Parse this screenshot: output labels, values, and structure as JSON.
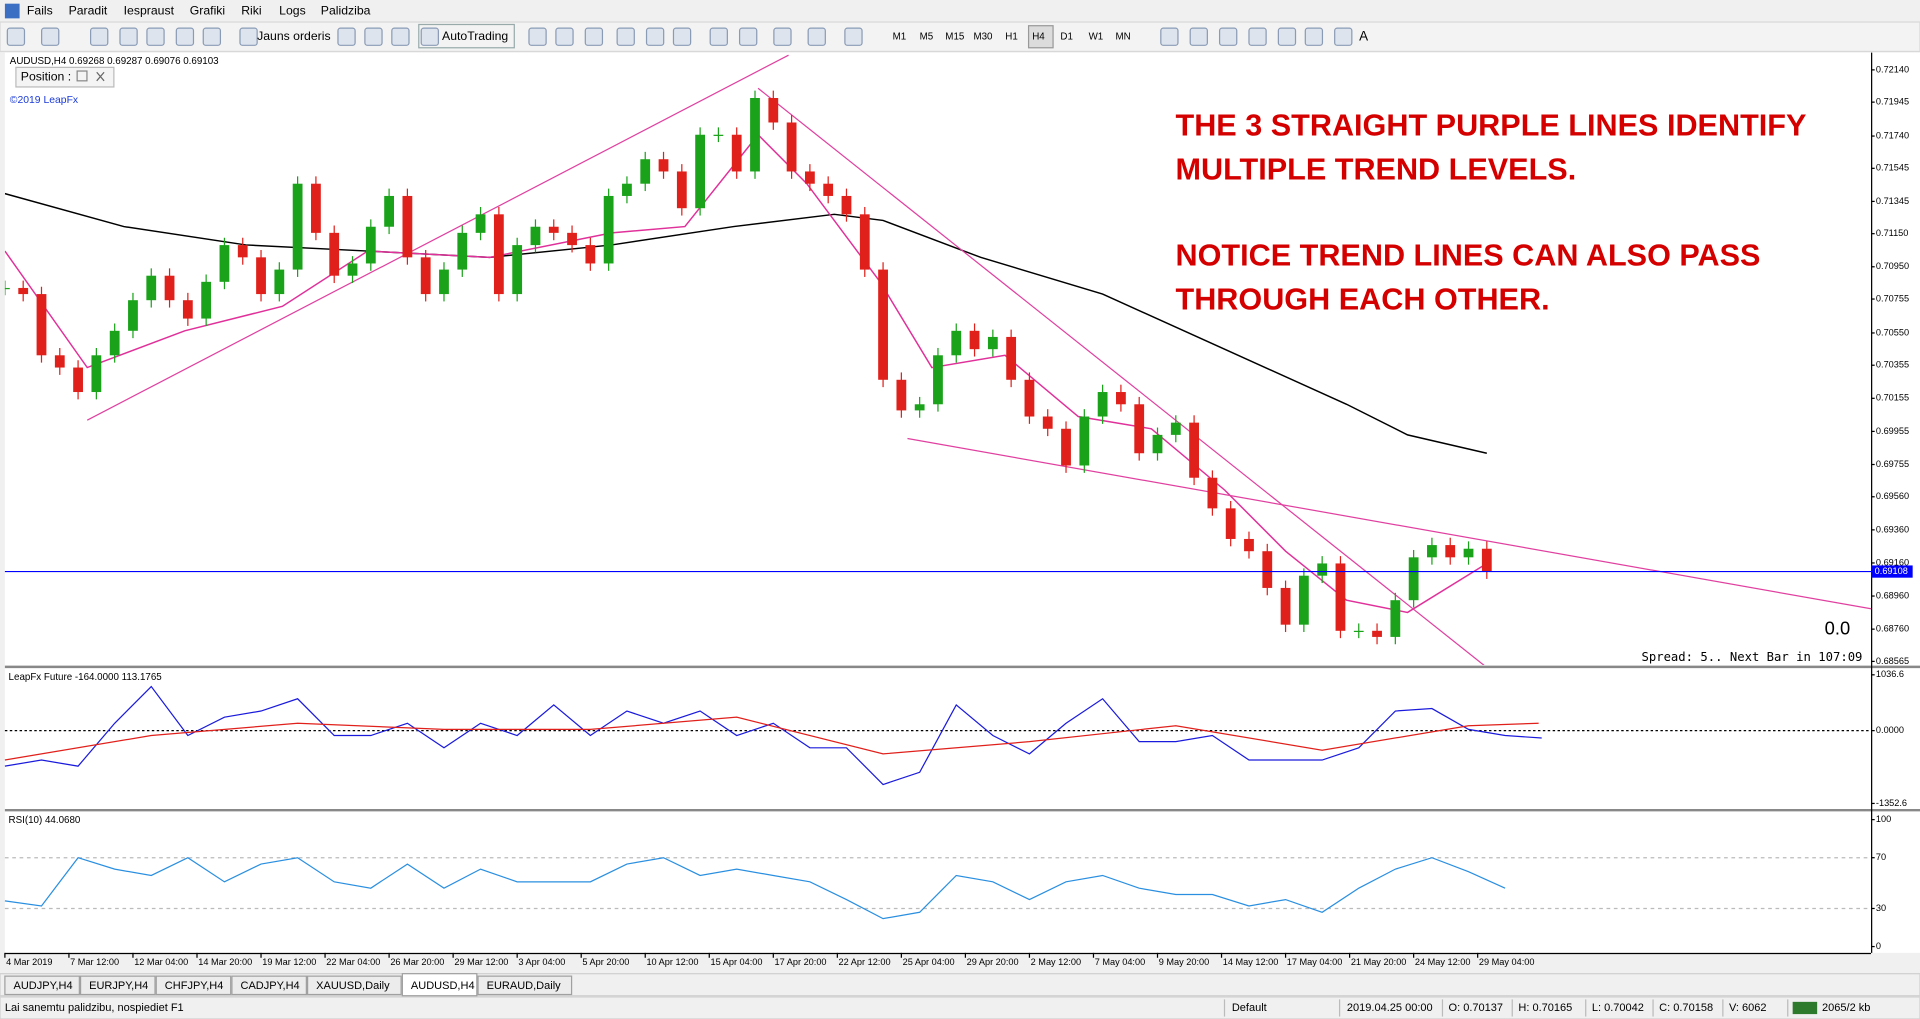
{
  "menu": [
    "Fails",
    "Paradit",
    "Iespraust",
    "Grafiki",
    "Riki",
    "Logs",
    "Palidziba"
  ],
  "toolbar": {
    "new_order": "Jauns orderis",
    "autotrading": "AutoTrading",
    "timeframes": [
      "M1",
      "M5",
      "M15",
      "M30",
      "H1",
      "H4",
      "D1",
      "W1",
      "MN"
    ],
    "active_timeframe": 5,
    "text_tool": "A"
  },
  "chart_data": [
    {
      "type": "candlestick",
      "title": "AUDUSD,H4  0.69268 0.69287 0.69076 0.69103",
      "subtitle": "©2019 LeapFx",
      "panel_label": "Position :",
      "annotations": [
        "THE 3 STRAIGHT PURPLE LINES IDENTIFY",
        "MULTIPLE TREND LEVELS.",
        "NOTICE TREND LINES CAN ALSO PASS",
        "THROUGH EACH OTHER."
      ],
      "annotation_color": "#d40000",
      "balance": "0.0",
      "info": "Spread: 5.. Next Bar in 107:09",
      "x": [
        0,
        6,
        12,
        18,
        24,
        30,
        36,
        42,
        48,
        54,
        60,
        66,
        72,
        78,
        84,
        90,
        96,
        102,
        108,
        114,
        120,
        126,
        132,
        138,
        144,
        150,
        156,
        162,
        168,
        174,
        180,
        186,
        192,
        198,
        204,
        210,
        216,
        222,
        228,
        234,
        240,
        246,
        252,
        258,
        264,
        270,
        276,
        282,
        288,
        294,
        300,
        306,
        312,
        318,
        324,
        330,
        336,
        342,
        348,
        354,
        360,
        366,
        372,
        378,
        384,
        390,
        396,
        402,
        408,
        414,
        420,
        426,
        432,
        438,
        444,
        450,
        456,
        462,
        468,
        474,
        480,
        486
      ],
      "values": [
        0.70822,
        0.70785,
        0.70415,
        0.70341,
        0.70193,
        0.70415,
        0.70563,
        0.70748,
        0.70896,
        0.70748,
        0.70637,
        0.70859,
        0.71081,
        0.71007,
        0.70785,
        0.70933,
        0.71452,
        0.71155,
        0.70896,
        0.7097,
        0.71192,
        0.71378,
        0.71007,
        0.70785,
        0.70933,
        0.71155,
        0.71267,
        0.70785,
        0.71081,
        0.71192,
        0.71155,
        0.71081,
        0.7097,
        0.71378,
        0.71452,
        0.716,
        0.71526,
        0.71304,
        0.71748,
        0.71748,
        0.71526,
        0.7197,
        0.71822,
        0.71526,
        0.71452,
        0.71378,
        0.71267,
        0.70933,
        0.70267,
        0.70082,
        0.70119,
        0.70415,
        0.70563,
        0.70452,
        0.70526,
        0.70267,
        0.70045,
        0.69971,
        0.69749,
        0.70045,
        0.70193,
        0.70119,
        0.69823,
        0.69934,
        0.70008,
        0.69675,
        0.6949,
        0.69305,
        0.69231,
        0.69009,
        0.68787,
        0.69083,
        0.69157,
        0.6875,
        0.6875,
        0.68713,
        0.68935,
        0.69194,
        0.69268,
        0.69194,
        0.69246,
        0.69108
      ],
      "up_color": "#1aa31a",
      "down_color": "#e0201b",
      "xlim": [
        0,
        612
      ],
      "ylim": [
        0.68543,
        0.72244
      ],
      "xticks": [
        {
          "value": 0,
          "label": "4 Mar 2019"
        },
        {
          "value": 21,
          "label": "7 Mar 12:00"
        },
        {
          "value": 42,
          "label": "12 Mar 04:00"
        },
        {
          "value": 63,
          "label": "14 Mar 20:00"
        },
        {
          "value": 84,
          "label": "19 Mar 12:00"
        },
        {
          "value": 105,
          "label": "22 Mar 04:00"
        },
        {
          "value": 126,
          "label": "26 Mar 20:00"
        },
        {
          "value": 147,
          "label": "29 Mar 12:00"
        },
        {
          "value": 168,
          "label": "3 Apr 04:00"
        },
        {
          "value": 189,
          "label": "5 Apr 20:00"
        },
        {
          "value": 210,
          "label": "10 Apr 12:00"
        },
        {
          "value": 231,
          "label": "15 Apr 04:00"
        },
        {
          "value": 252,
          "label": "17 Apr 20:00"
        },
        {
          "value": 273,
          "label": "22 Apr 12:00"
        },
        {
          "value": 294,
          "label": "25 Apr 04:00"
        },
        {
          "value": 315,
          "label": "29 Apr 20:00"
        },
        {
          "value": 336,
          "label": "2 May 12:00"
        },
        {
          "value": 357,
          "label": "7 May 04:00"
        },
        {
          "value": 378,
          "label": "9 May 20:00"
        },
        {
          "value": 399,
          "label": "14 May 12:00"
        },
        {
          "value": 420,
          "label": "17 May 04:00"
        },
        {
          "value": 441,
          "label": "21 May 20:00"
        },
        {
          "value": 462,
          "label": "24 May 12:00"
        },
        {
          "value": 483,
          "label": "29 May 04:00"
        }
      ],
      "yticks": [
        {
          "value": 0.7214,
          "label": "0.72140"
        },
        {
          "value": 0.71945,
          "label": "0.71945"
        },
        {
          "value": 0.7174,
          "label": "0.71740"
        },
        {
          "value": 0.71545,
          "label": "0.71545"
        },
        {
          "value": 0.71345,
          "label": "0.71345"
        },
        {
          "value": 0.7115,
          "label": "0.71150"
        },
        {
          "value": 0.7095,
          "label": "0.70950"
        },
        {
          "value": 0.70755,
          "label": "0.70755"
        },
        {
          "value": 0.7055,
          "label": "0.70550"
        },
        {
          "value": 0.70355,
          "label": "0.70355"
        },
        {
          "value": 0.70155,
          "label": "0.70155"
        },
        {
          "value": 0.69955,
          "label": "0.69955"
        },
        {
          "value": 0.69755,
          "label": "0.69755"
        },
        {
          "value": 0.6956,
          "label": "0.69560"
        },
        {
          "value": 0.6936,
          "label": "0.69360"
        },
        {
          "value": 0.6916,
          "label": "0.69160"
        },
        {
          "value": 0.6896,
          "label": "0.68960"
        },
        {
          "value": 0.6876,
          "label": "0.68760"
        },
        {
          "value": 0.68565,
          "label": "0.68565"
        }
      ],
      "lines": [
        {
          "color": "#000000",
          "x": [
            0,
            39,
            79,
            119,
            159,
            199,
            239,
            272,
            288,
            320,
            360,
            400,
            440,
            460,
            486
          ],
          "values": [
            0.71392,
            0.71193,
            0.71082,
            0.71045,
            0.71007,
            0.71082,
            0.71193,
            0.71267,
            0.7123,
            0.71007,
            0.70785,
            0.70452,
            0.70119,
            0.69934,
            0.69823
          ]
        },
        {
          "color": "#e0309a",
          "x": [
            0,
            27,
            59,
            91,
            119,
            159,
            199,
            223,
            247,
            263,
            287,
            304,
            328,
            352,
            376,
            400,
            420,
            440,
            460,
            486
          ],
          "values": [
            0.71045,
            0.70341,
            0.70563,
            0.70711,
            0.71045,
            0.71007,
            0.71155,
            0.71193,
            0.71748,
            0.71452,
            0.70859,
            0.70341,
            0.70415,
            0.70045,
            0.69971,
            0.69601,
            0.69231,
            0.68935,
            0.68861,
            0.69157
          ]
        }
      ],
      "trendline_color": "#e040a0",
      "trendlines": [
        {
          "x": [
            27,
            257
          ],
          "values": [
            0.70023,
            0.72229
          ]
        },
        {
          "x": [
            247,
            486
          ],
          "values": [
            0.72029,
            0.68528
          ]
        },
        {
          "x": [
            296,
            612
          ],
          "values": [
            0.69912,
            0.68883
          ]
        }
      ],
      "current": 0.69108,
      "current_color": "#0000ff"
    },
    {
      "type": "line",
      "title": "LeapFx Future -164.0000 113.1765",
      "ylim": [
        -1443.6,
        1150
      ],
      "yticks": [
        1036.6,
        {
          "value": 0,
          "label": "0.0000"
        },
        -1352.6
      ],
      "levels": [
        0
      ],
      "series": [
        {
          "color": "#1a1adc",
          "x": [
            0,
            12,
            24,
            36,
            48,
            60,
            72,
            84,
            96,
            108,
            120,
            132,
            144,
            156,
            168,
            180,
            192,
            204,
            216,
            228,
            240,
            252,
            264,
            276,
            288,
            300,
            312,
            324,
            336,
            348,
            360,
            372,
            384,
            396,
            408,
            420,
            432,
            444,
            456,
            468,
            480,
            492,
            504
          ],
          "values": [
            -660,
            -546,
            -660,
            137,
            819,
            -91,
            250,
            364,
            592,
            -91,
            -91,
            137,
            -319,
            137,
            -91,
            478,
            -91,
            364,
            137,
            364,
            -91,
            137,
            -319,
            -319,
            -1001,
            -774,
            478,
            -91,
            -432,
            137,
            592,
            -205,
            -205,
            -91,
            -546,
            -546,
            -546,
            -319,
            364,
            410,
            23,
            -91,
            -137
          ]
        },
        {
          "color": "#e0201b",
          "x": [
            0,
            48,
            96,
            144,
            192,
            240,
            288,
            336,
            384,
            432,
            480,
            503
          ],
          "values": [
            -546,
            -91,
            137,
            23,
            23,
            250,
            -432,
            -205,
            91,
            -364,
            91,
            137
          ]
        }
      ]
    },
    {
      "type": "line",
      "title": "RSI(10) 44.0680",
      "ylim": [
        -4,
        106
      ],
      "yticks": [
        100,
        70,
        30,
        0
      ],
      "levels": [
        70,
        30
      ],
      "series": [
        {
          "color": "#2a8fe0",
          "x": [
            0,
            12,
            24,
            36,
            48,
            60,
            72,
            84,
            96,
            108,
            120,
            132,
            144,
            156,
            168,
            180,
            192,
            204,
            216,
            228,
            240,
            252,
            264,
            276,
            288,
            300,
            312,
            324,
            336,
            348,
            360,
            372,
            384,
            396,
            408,
            420,
            432,
            444,
            456,
            468,
            480,
            492
          ],
          "values": [
            36,
            32,
            70,
            61,
            56,
            70,
            51,
            65,
            70,
            51,
            46,
            65,
            46,
            61,
            51,
            51,
            51,
            65,
            70,
            56,
            61,
            56,
            51,
            37,
            22,
            27,
            56,
            51,
            37,
            51,
            56,
            46,
            41,
            41,
            32,
            37,
            27,
            46,
            61,
            70,
            59,
            46
          ]
        }
      ]
    }
  ],
  "tabs": [
    "AUDJPY,H4",
    "EURJPY,H4",
    "CHFJPY,H4",
    "CADJPY,H4",
    "XAUUSD,Daily",
    "AUDUSD,H4",
    "EURAUD,Daily"
  ],
  "active_tab": 5,
  "status": {
    "help": "Lai sanemtu palidzibu, nospiediet F1",
    "profile": "Default",
    "time": "2019.04.25 00:00",
    "open": "O: 0.70137",
    "high": "H: 0.70165",
    "low": "L: 0.70042",
    "close": "C: 0.70158",
    "volume": "V: 6062",
    "traffic": "2065/2 kb"
  }
}
